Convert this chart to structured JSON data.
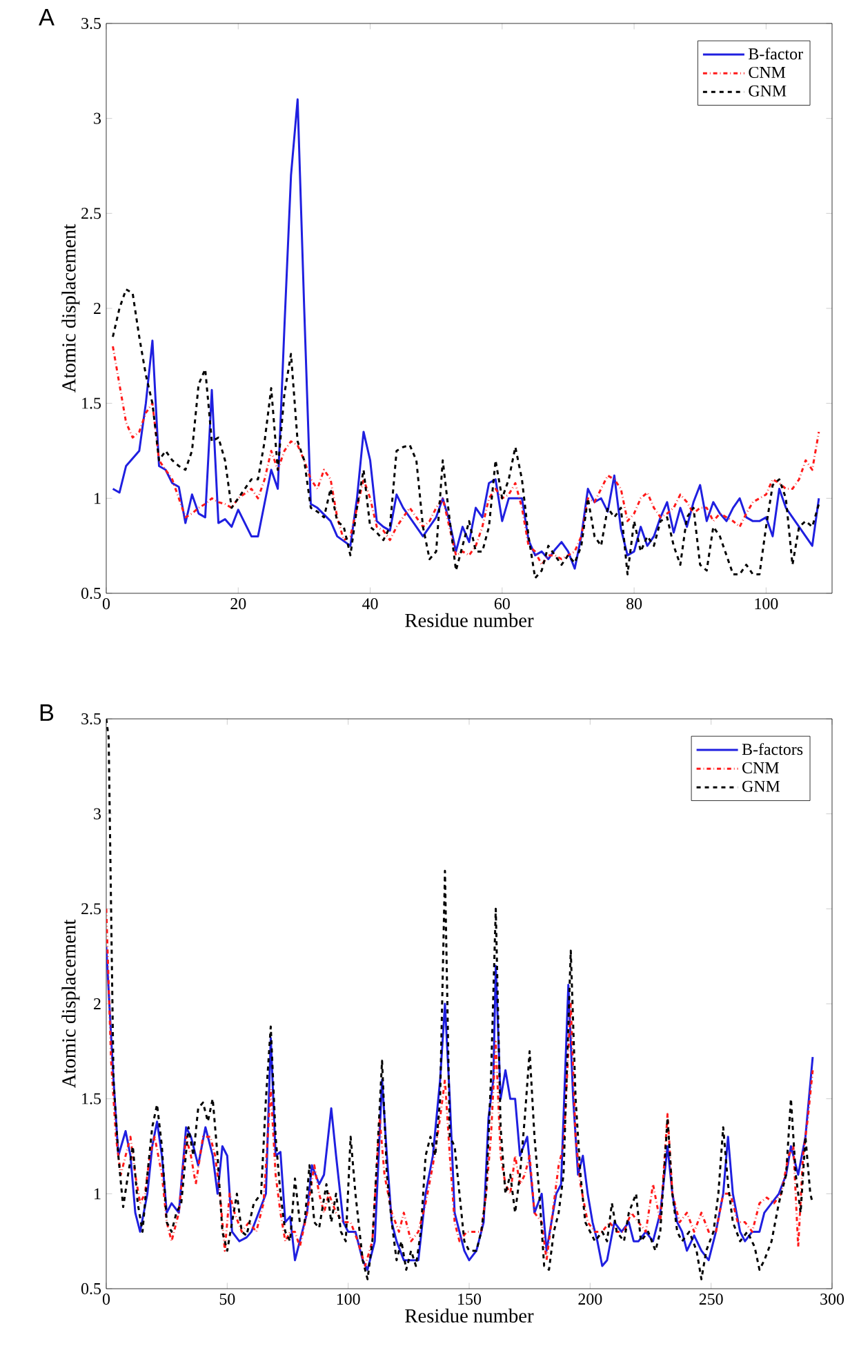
{
  "chart_data": [
    {
      "type": "line",
      "title": "A",
      "xlabel": "Residue number",
      "ylabel": "Atomic displacement",
      "xlim": [
        0,
        110
      ],
      "ylim": [
        0.5,
        3.5
      ],
      "xticks": [
        0,
        20,
        40,
        60,
        80,
        100
      ],
      "yticks": [
        0.5,
        1,
        1.5,
        2,
        2.5,
        3,
        3.5
      ],
      "legend": "top right",
      "series": [
        {
          "name": "B-factor",
          "color": "#1f1fe0",
          "line_style": "solid",
          "x": [
            1,
            2,
            3,
            5,
            6,
            7,
            8,
            9,
            10,
            11,
            12,
            13,
            14,
            15,
            16,
            17,
            18,
            19,
            20,
            22,
            23,
            25,
            26,
            27,
            28,
            29,
            30,
            31,
            32,
            34,
            35,
            37,
            38,
            39,
            40,
            41,
            42,
            43,
            44,
            45,
            46,
            47,
            48,
            49,
            50,
            51,
            52,
            53,
            54,
            55,
            56,
            57,
            58,
            59,
            60,
            61,
            62,
            63,
            64,
            65,
            66,
            67,
            68,
            69,
            70,
            71,
            72,
            73,
            74,
            75,
            76,
            77,
            78,
            79,
            80,
            81,
            82,
            83,
            84,
            85,
            86,
            87,
            88,
            89,
            90,
            91,
            92,
            93,
            94,
            95,
            96,
            97,
            98,
            99,
            100,
            101,
            102,
            103,
            104,
            105,
            107,
            108
          ],
          "values": [
            1.05,
            1.03,
            1.17,
            1.25,
            1.5,
            1.83,
            1.17,
            1.15,
            1.08,
            1.06,
            0.87,
            1.02,
            0.92,
            0.9,
            1.57,
            0.87,
            0.89,
            0.85,
            0.94,
            0.8,
            0.8,
            1.15,
            1.05,
            1.9,
            2.7,
            3.1,
            2.0,
            0.97,
            0.95,
            0.88,
            0.8,
            0.75,
            1.0,
            1.35,
            1.2,
            0.88,
            0.85,
            0.83,
            1.02,
            0.95,
            0.9,
            0.85,
            0.8,
            0.85,
            0.9,
            1.0,
            0.88,
            0.72,
            0.85,
            0.77,
            0.95,
            0.9,
            1.08,
            1.1,
            0.88,
            1.0,
            1.0,
            1.0,
            0.78,
            0.7,
            0.72,
            0.68,
            0.73,
            0.77,
            0.72,
            0.63,
            0.8,
            1.05,
            0.98,
            1.0,
            0.93,
            1.12,
            0.84,
            0.7,
            0.72,
            0.85,
            0.75,
            0.8,
            0.9,
            0.98,
            0.82,
            0.95,
            0.85,
            0.98,
            1.07,
            0.88,
            0.98,
            0.92,
            0.88,
            0.95,
            1.0,
            0.9,
            0.88,
            0.88,
            0.9,
            0.8,
            1.05,
            0.95,
            0.9,
            0.85,
            0.75,
            1.0
          ]
        },
        {
          "name": "CNM",
          "color": "#ff1a1a",
          "line_style": "dashdot",
          "x": [
            1,
            2,
            3,
            4,
            5,
            6,
            7,
            8,
            9,
            10,
            11,
            12,
            13,
            14,
            15,
            16,
            17,
            18,
            19,
            20,
            22,
            23,
            24,
            25,
            26,
            27,
            28,
            29,
            30,
            31,
            32,
            33,
            34,
            35,
            36,
            37,
            38,
            39,
            40,
            41,
            42,
            43,
            44,
            45,
            46,
            47,
            48,
            49,
            50,
            51,
            52,
            53,
            54,
            55,
            56,
            57,
            58,
            59,
            60,
            61,
            62,
            63,
            64,
            65,
            66,
            67,
            68,
            69,
            70,
            71,
            72,
            73,
            74,
            75,
            76,
            77,
            78,
            79,
            80,
            81,
            82,
            83,
            84,
            85,
            86,
            87,
            88,
            89,
            90,
            91,
            92,
            93,
            94,
            95,
            96,
            97,
            98,
            99,
            100,
            101,
            102,
            103,
            104,
            105,
            106,
            107,
            108
          ],
          "values": [
            1.8,
            1.6,
            1.4,
            1.32,
            1.35,
            1.45,
            1.5,
            1.2,
            1.15,
            1.1,
            1.0,
            0.9,
            0.92,
            0.95,
            0.97,
            1.0,
            0.98,
            0.97,
            0.95,
            1.0,
            1.05,
            1.0,
            1.1,
            1.25,
            1.15,
            1.25,
            1.3,
            1.28,
            1.2,
            1.1,
            1.05,
            1.15,
            1.1,
            0.9,
            0.78,
            0.8,
            0.95,
            1.1,
            1.0,
            0.85,
            0.83,
            0.78,
            0.85,
            0.9,
            0.95,
            0.9,
            0.85,
            0.88,
            0.95,
            1.0,
            0.85,
            0.7,
            0.72,
            0.7,
            0.75,
            0.85,
            1.0,
            1.05,
            1.0,
            1.02,
            1.08,
            0.95,
            0.75,
            0.72,
            0.65,
            0.7,
            0.7,
            0.68,
            0.7,
            0.72,
            0.8,
            1.0,
            0.98,
            1.05,
            1.12,
            1.1,
            1.05,
            0.88,
            0.92,
            1.0,
            1.03,
            0.95,
            0.9,
            0.92,
            0.95,
            1.02,
            0.98,
            0.92,
            0.95,
            0.95,
            0.88,
            0.92,
            0.9,
            0.88,
            0.85,
            0.92,
            0.98,
            1.0,
            1.02,
            1.1,
            1.08,
            1.05,
            1.05,
            1.1,
            1.2,
            1.15,
            1.35
          ]
        },
        {
          "name": "GNM",
          "color": "#000000",
          "line_style": "dashed",
          "x": [
            1,
            2,
            3,
            4,
            5,
            6,
            7,
            8,
            9,
            10,
            11,
            12,
            13,
            14,
            15,
            16,
            17,
            18,
            19,
            20,
            21,
            22,
            23,
            24,
            25,
            26,
            27,
            28,
            29,
            30,
            31,
            32,
            33,
            34,
            35,
            36,
            37,
            38,
            39,
            40,
            41,
            42,
            43,
            44,
            45,
            46,
            47,
            48,
            49,
            50,
            51,
            52,
            53,
            54,
            55,
            56,
            57,
            58,
            59,
            60,
            61,
            62,
            63,
            64,
            65,
            66,
            67,
            68,
            69,
            70,
            71,
            72,
            73,
            74,
            75,
            76,
            77,
            78,
            79,
            80,
            81,
            82,
            83,
            84,
            85,
            86,
            87,
            88,
            89,
            90,
            91,
            92,
            93,
            94,
            95,
            96,
            97,
            98,
            99,
            100,
            101,
            102,
            103,
            104,
            105,
            106,
            107,
            108
          ],
          "values": [
            1.85,
            2.0,
            2.1,
            2.08,
            1.85,
            1.65,
            1.5,
            1.2,
            1.25,
            1.2,
            1.17,
            1.15,
            1.25,
            1.6,
            1.68,
            1.3,
            1.32,
            1.2,
            0.95,
            1.0,
            1.05,
            1.1,
            1.1,
            1.3,
            1.58,
            1.15,
            1.55,
            1.76,
            1.3,
            1.2,
            0.95,
            0.93,
            0.9,
            1.05,
            0.88,
            0.85,
            0.7,
            0.95,
            1.15,
            0.85,
            0.82,
            0.78,
            0.85,
            1.25,
            1.27,
            1.28,
            1.2,
            0.85,
            0.68,
            0.72,
            1.2,
            0.9,
            0.62,
            0.75,
            0.88,
            0.72,
            0.72,
            0.85,
            1.2,
            1.0,
            1.1,
            1.27,
            1.1,
            0.8,
            0.58,
            0.62,
            0.75,
            0.7,
            0.65,
            0.7,
            0.66,
            0.75,
            1.0,
            0.8,
            0.75,
            0.95,
            0.9,
            0.95,
            0.6,
            0.88,
            0.72,
            0.8,
            0.75,
            0.88,
            0.9,
            0.75,
            0.65,
            0.9,
            0.95,
            0.65,
            0.62,
            0.85,
            0.8,
            0.7,
            0.6,
            0.6,
            0.65,
            0.6,
            0.6,
            0.85,
            1.07,
            1.1,
            1.0,
            0.65,
            0.85,
            0.88,
            0.85,
            0.97
          ]
        }
      ]
    },
    {
      "type": "line",
      "title": "B",
      "xlabel": "Residue number",
      "ylabel": "Atomic displacement",
      "xlim": [
        0,
        300
      ],
      "ylim": [
        0.5,
        3.5
      ],
      "xticks": [
        0,
        50,
        100,
        150,
        200,
        250,
        300
      ],
      "yticks": [
        0.5,
        1,
        1.5,
        2,
        2.5,
        3,
        3.5
      ],
      "legend": "top right",
      "series": [
        {
          "name": "B-factors",
          "color": "#1f1fe0",
          "line_style": "solid",
          "x": [
            0,
            3,
            5,
            8,
            10,
            12,
            14,
            17,
            19,
            21,
            23,
            25,
            27,
            30,
            33,
            35,
            38,
            41,
            44,
            46,
            48,
            50,
            52,
            55,
            58,
            60,
            63,
            66,
            68,
            70,
            72,
            74,
            76,
            78,
            80,
            83,
            85,
            88,
            90,
            93,
            95,
            98,
            100,
            103,
            106,
            108,
            111,
            114,
            116,
            118,
            120,
            123,
            126,
            129,
            132,
            135,
            138,
            140,
            142,
            144,
            146,
            148,
            150,
            153,
            156,
            158,
            160,
            161,
            163,
            165,
            167,
            169,
            171,
            174,
            177,
            180,
            182,
            184,
            186,
            188,
            191,
            193,
            195,
            197,
            199,
            201,
            203,
            205,
            207,
            210,
            213,
            216,
            218,
            220,
            223,
            226,
            229,
            232,
            234,
            236,
            238,
            240,
            243,
            246,
            249,
            252,
            255,
            257,
            259,
            262,
            264,
            267,
            270,
            272,
            275,
            278,
            281,
            283,
            286,
            289,
            292
          ],
          "values": [
            2.3,
            1.6,
            1.2,
            1.33,
            1.2,
            0.9,
            0.8,
            1.0,
            1.25,
            1.38,
            1.2,
            0.9,
            0.95,
            0.9,
            1.35,
            1.3,
            1.15,
            1.35,
            1.2,
            1.0,
            1.25,
            1.2,
            0.8,
            0.75,
            0.77,
            0.8,
            0.9,
            1.0,
            1.82,
            1.2,
            1.22,
            0.85,
            0.88,
            0.65,
            0.75,
            0.9,
            1.15,
            1.05,
            1.1,
            1.45,
            1.2,
            0.85,
            0.8,
            0.8,
            0.65,
            0.6,
            0.75,
            1.6,
            1.2,
            0.85,
            0.75,
            0.65,
            0.65,
            0.65,
            1.0,
            1.2,
            1.6,
            2.0,
            1.5,
            0.9,
            0.8,
            0.7,
            0.65,
            0.7,
            0.85,
            1.4,
            1.6,
            2.2,
            1.5,
            1.65,
            1.5,
            1.5,
            1.2,
            1.3,
            0.9,
            1.0,
            0.7,
            0.85,
            1.0,
            1.05,
            2.1,
            1.5,
            1.1,
            1.2,
            1.0,
            0.85,
            0.75,
            0.62,
            0.65,
            0.85,
            0.8,
            0.85,
            0.75,
            0.75,
            0.8,
            0.75,
            0.9,
            1.25,
            1.0,
            0.85,
            0.8,
            0.7,
            0.78,
            0.7,
            0.65,
            0.8,
            1.0,
            1.3,
            1.0,
            0.8,
            0.75,
            0.8,
            0.8,
            0.9,
            0.95,
            1.0,
            1.1,
            1.25,
            1.1,
            1.3,
            1.72
          ]
        },
        {
          "name": "CNM",
          "color": "#ff1a1a",
          "line_style": "dashdot",
          "x": [
            0,
            2,
            4,
            6,
            8,
            10,
            12,
            14,
            16,
            18,
            20,
            23,
            25,
            27,
            30,
            33,
            35,
            37,
            40,
            43,
            45,
            47,
            49,
            51,
            53,
            56,
            59,
            62,
            65,
            68,
            70,
            72,
            74,
            76,
            78,
            80,
            83,
            86,
            88,
            90,
            92,
            95,
            98,
            101,
            104,
            107,
            110,
            113,
            115,
            118,
            121,
            123,
            126,
            129,
            132,
            135,
            138,
            140,
            142,
            144,
            146,
            149,
            152,
            155,
            157,
            159,
            161,
            163,
            165,
            167,
            169,
            171,
            173,
            175,
            177,
            180,
            182,
            184,
            187,
            189,
            192,
            194,
            196,
            199,
            202,
            205,
            208,
            211,
            214,
            217,
            220,
            223,
            226,
            229,
            232,
            234,
            237,
            240,
            243,
            246,
            249,
            252,
            255,
            258,
            261,
            264,
            267,
            270,
            273,
            276,
            279,
            282,
            284,
            286,
            288,
            290,
            292
          ],
          "values": [
            2.5,
            1.7,
            1.3,
            1.1,
            1.2,
            1.3,
            1.1,
            0.95,
            1.0,
            1.2,
            1.3,
            1.1,
            0.85,
            0.75,
            0.9,
            1.3,
            1.2,
            1.05,
            1.3,
            1.3,
            1.2,
            1.0,
            0.7,
            1.0,
            0.9,
            0.8,
            0.85,
            0.8,
            0.95,
            1.55,
            1.1,
            0.9,
            0.75,
            0.8,
            0.8,
            0.72,
            0.9,
            1.15,
            1.0,
            0.9,
            1.0,
            0.9,
            0.85,
            0.85,
            0.75,
            0.62,
            0.75,
            1.4,
            1.1,
            0.9,
            0.8,
            0.9,
            0.75,
            0.8,
            0.95,
            1.15,
            1.4,
            1.6,
            1.2,
            0.85,
            0.75,
            0.8,
            0.8,
            0.8,
            1.0,
            1.3,
            1.8,
            1.2,
            1.05,
            1.0,
            1.2,
            1.05,
            1.1,
            1.2,
            0.9,
            0.85,
            0.65,
            0.85,
            1.15,
            1.25,
            2.0,
            1.3,
            1.05,
            0.85,
            0.8,
            0.8,
            0.85,
            0.8,
            0.8,
            0.9,
            0.85,
            0.8,
            1.05,
            0.85,
            1.42,
            1.0,
            0.85,
            0.9,
            0.8,
            0.9,
            0.8,
            0.8,
            1.0,
            1.0,
            0.85,
            0.85,
            0.8,
            0.95,
            0.98,
            0.95,
            1.0,
            1.2,
            1.25,
            0.72,
            1.2,
            1.4,
            1.65
          ]
        },
        {
          "name": "GNM",
          "color": "#000000",
          "line_style": "dashed",
          "x": [
            0,
            1,
            2,
            3,
            5,
            7,
            9,
            11,
            13,
            15,
            17,
            19,
            21,
            23,
            25,
            27,
            29,
            31,
            34,
            36,
            38,
            40,
            42,
            44,
            46,
            48,
            50,
            52,
            54,
            56,
            58,
            61,
            64,
            66,
            68,
            70,
            72,
            74,
            76,
            78,
            80,
            82,
            84,
            86,
            88,
            91,
            93,
            95,
            97,
            99,
            101,
            103,
            106,
            108,
            110,
            112,
            114,
            116,
            118,
            120,
            122,
            124,
            126,
            128,
            130,
            132,
            134,
            136,
            138,
            140,
            142,
            144,
            146,
            148,
            150,
            153,
            155,
            157,
            159,
            161,
            163,
            165,
            167,
            169,
            171,
            173,
            175,
            177,
            179,
            181,
            183,
            185,
            187,
            189,
            192,
            194,
            196,
            198,
            200,
            202,
            205,
            207,
            209,
            211,
            214,
            216,
            219,
            221,
            224,
            227,
            229,
            232,
            234,
            236,
            238,
            241,
            244,
            246,
            248,
            251,
            253,
            255,
            257,
            259,
            262,
            265,
            268,
            270,
            272,
            275,
            278,
            281,
            283,
            285,
            287,
            289,
            291,
            292
          ],
          "values": [
            3.5,
            3.4,
            2.5,
            1.6,
            1.2,
            0.93,
            1.1,
            1.25,
            0.95,
            0.8,
            1.1,
            1.35,
            1.47,
            1.25,
            0.85,
            0.8,
            0.9,
            0.95,
            1.35,
            1.2,
            1.45,
            1.48,
            1.38,
            1.5,
            1.2,
            0.8,
            0.7,
            0.85,
            1.0,
            0.8,
            0.78,
            0.95,
            1.0,
            1.5,
            1.88,
            1.3,
            1.0,
            0.8,
            0.75,
            1.08,
            0.85,
            0.85,
            1.15,
            0.85,
            0.82,
            1.05,
            0.85,
            1.0,
            0.8,
            0.75,
            1.3,
            1.0,
            0.65,
            0.55,
            0.75,
            1.2,
            1.7,
            1.1,
            0.85,
            0.65,
            0.75,
            0.6,
            0.7,
            0.62,
            0.8,
            1.2,
            1.3,
            1.2,
            1.5,
            2.7,
            1.3,
            1.25,
            1.0,
            0.75,
            0.7,
            0.7,
            0.8,
            1.0,
            1.6,
            2.5,
            1.35,
            1.0,
            1.1,
            0.9,
            1.1,
            1.4,
            1.75,
            1.3,
            1.0,
            0.62,
            0.6,
            0.8,
            0.9,
            1.1,
            2.28,
            1.5,
            1.1,
            0.85,
            0.8,
            0.75,
            0.8,
            0.75,
            0.95,
            0.8,
            0.75,
            0.9,
            1.0,
            0.75,
            0.8,
            0.7,
            0.8,
            1.4,
            1.0,
            0.8,
            0.75,
            0.8,
            0.7,
            0.55,
            0.7,
            0.8,
            1.0,
            1.35,
            1.05,
            0.85,
            0.75,
            0.8,
            0.72,
            0.6,
            0.65,
            0.75,
            0.95,
            1.1,
            1.5,
            1.1,
            0.9,
            1.3,
            1.0,
            0.95
          ]
        }
      ]
    }
  ]
}
